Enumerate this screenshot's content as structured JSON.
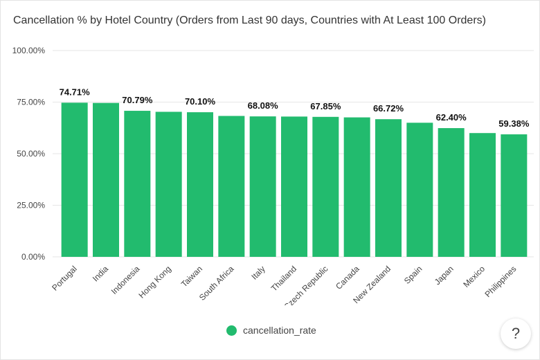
{
  "title": "Cancellation % by Hotel Country (Orders from Last 90 days, Countries with At Least 100 Orders)",
  "help_label": "?",
  "colors": {
    "bar": "#22bb6e",
    "grid": "#e6e6e6",
    "axis_text": "#444444",
    "label_text": "#111111"
  },
  "chart_data": {
    "type": "bar",
    "title": "Cancellation % by Hotel Country (Orders from Last 90 days, Countries with At Least 100 Orders)",
    "categories": [
      "Portugal",
      "India",
      "Indonesia",
      "Hong Kong",
      "Taiwan",
      "South Africa",
      "Italy",
      "Thailand",
      "Czech Republic",
      "Canada",
      "New Zealand",
      "Spain",
      "Japan",
      "Mexico",
      "Philippines"
    ],
    "series": [
      {
        "name": "cancellation_rate",
        "values": [
          74.71,
          74.6,
          70.79,
          70.3,
          70.1,
          68.3,
          68.08,
          68.0,
          67.85,
          67.6,
          66.72,
          65.0,
          62.4,
          60.0,
          59.38
        ]
      }
    ],
    "data_labels": [
      "74.71%",
      "",
      "70.79%",
      "",
      "70.10%",
      "",
      "68.08%",
      "",
      "67.85%",
      "",
      "66.72%",
      "",
      "62.40%",
      "",
      "59.38%"
    ],
    "yticks": [
      "0.00%",
      "25.00%",
      "50.00%",
      "75.00%",
      "100.00%"
    ],
    "ylim": [
      0,
      100
    ],
    "grid": true,
    "legend_position": "bottom"
  }
}
